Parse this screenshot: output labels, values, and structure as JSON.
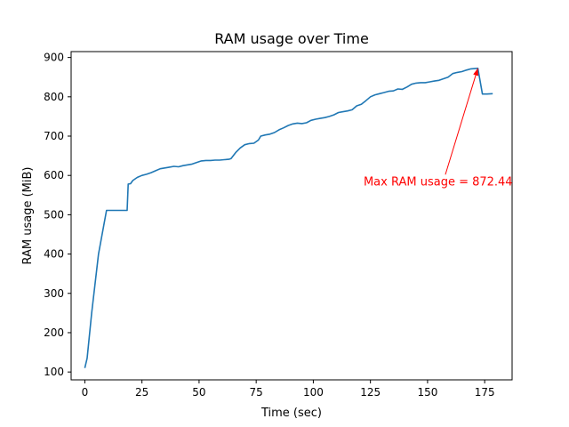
{
  "chart_data": {
    "type": "line",
    "title": "RAM usage over Time",
    "xlabel": "Time (sec)",
    "ylabel": "RAM usage (MiB)",
    "xlim": [
      -6,
      187
    ],
    "ylim": [
      80,
      915
    ],
    "xticks": [
      0,
      25,
      50,
      75,
      100,
      125,
      150,
      175
    ],
    "yticks": [
      100,
      200,
      300,
      400,
      500,
      600,
      700,
      800,
      900
    ],
    "grid": false,
    "legend": "none",
    "series": [
      {
        "color": "#1f77b4",
        "x": [
          0,
          1,
          3,
          6,
          9.5,
          12,
          15,
          18.5,
          19,
          20,
          21,
          23,
          25,
          27,
          29,
          31,
          33,
          35,
          37,
          39,
          41,
          43,
          45,
          47,
          49,
          51,
          53,
          55,
          57,
          59,
          61,
          63,
          64,
          66,
          68,
          70,
          72,
          74,
          76,
          77,
          79,
          81,
          83,
          85,
          87,
          89,
          91,
          93,
          95,
          97,
          99,
          101,
          103,
          105,
          107,
          109,
          111,
          113,
          115,
          117,
          119,
          121,
          123,
          125,
          127,
          129,
          131,
          133,
          135,
          137,
          139,
          141,
          143,
          145,
          147,
          149,
          151,
          153,
          155,
          157,
          159,
          161,
          163,
          165,
          167,
          169,
          172,
          174,
          176,
          178.5
        ],
        "y": [
          110,
          135,
          250,
          400,
          511,
          511,
          511,
          511,
          578,
          579,
          587,
          595,
          600,
          603,
          607,
          612,
          617,
          619,
          621,
          623,
          622,
          625,
          627,
          629,
          633,
          637,
          638,
          638,
          639,
          639,
          640,
          641,
          643,
          658,
          670,
          678,
          681,
          682,
          690,
          700,
          703,
          705,
          709,
          716,
          721,
          727,
          731,
          733,
          732,
          734,
          740,
          743,
          745,
          747,
          750,
          754,
          760,
          762,
          764,
          767,
          777,
          781,
          790,
          800,
          805,
          808,
          811,
          814,
          815,
          820,
          819,
          825,
          832,
          835,
          836,
          836,
          838,
          840,
          842,
          846,
          850,
          859,
          862,
          864,
          868,
          871,
          872.44,
          807,
          807,
          808
        ]
      }
    ],
    "annotation": {
      "text": "Max RAM usage = 872.44",
      "color": "#ff0000",
      "point_x": 172,
      "point_y": 872.44,
      "text_x": 122,
      "text_y": 575
    }
  }
}
